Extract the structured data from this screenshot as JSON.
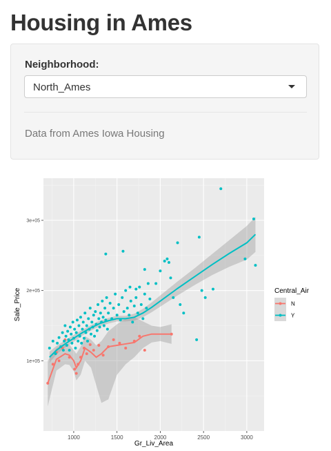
{
  "page": {
    "title": "Housing in Ames"
  },
  "sidebar": {
    "neighborhood_label": "Neighborhood:",
    "neighborhood_value": "North_Ames",
    "info_text": "Data from Ames Iowa Housing"
  },
  "colors": {
    "N": "#F8766D",
    "Y": "#00BFC4",
    "panel_bg": "#EBEBEB",
    "ribbon": "#999999"
  },
  "icons": {
    "dropdown": "chevron-down-icon"
  },
  "chart_data": {
    "type": "scatter",
    "title": "",
    "xlabel": "Gr_Liv_Area",
    "ylabel": "Sale_Price",
    "xlim": [
      650,
      3200
    ],
    "ylim": [
      0,
      360000
    ],
    "x_ticks": [
      1000,
      1500,
      2000,
      2500,
      3000
    ],
    "x_tick_labels": [
      "1000",
      "1500",
      "2000",
      "2500",
      "3000"
    ],
    "y_ticks": [
      100000,
      200000,
      300000
    ],
    "y_tick_labels": [
      "1e+05",
      "2e+05",
      "3e+05"
    ],
    "grid": true,
    "legend": {
      "title": "Central_Air",
      "position": "right",
      "entries": [
        "N",
        "Y"
      ]
    },
    "smoothing": "loess",
    "series": [
      {
        "name": "N",
        "color": "#F8766D",
        "points": [
          [
            700,
            68000
          ],
          [
            760,
            95000
          ],
          [
            800,
            112000
          ],
          [
            830,
            100000
          ],
          [
            870,
            118000
          ],
          [
            900,
            130000
          ],
          [
            950,
            105000
          ],
          [
            1010,
            88000
          ],
          [
            1030,
            82000
          ],
          [
            1050,
            95000
          ],
          [
            1080,
            105000
          ],
          [
            1120,
            118000
          ],
          [
            1150,
            110000
          ],
          [
            1190,
            123000
          ],
          [
            1230,
            115000
          ],
          [
            1290,
            122000
          ],
          [
            1340,
            108000
          ],
          [
            1400,
            120000
          ],
          [
            1460,
            130000
          ],
          [
            1530,
            125000
          ],
          [
            1600,
            118000
          ],
          [
            1700,
            128000
          ],
          [
            1760,
            135000
          ],
          [
            1820,
            115000
          ],
          [
            2130,
            138000
          ]
        ],
        "smooth": [
          [
            700,
            68000
          ],
          [
            800,
            102000
          ],
          [
            900,
            110000
          ],
          [
            950,
            108000
          ],
          [
            1000,
            100000
          ],
          [
            1030,
            90000
          ],
          [
            1080,
            100000
          ],
          [
            1130,
            118000
          ],
          [
            1200,
            112000
          ],
          [
            1260,
            105000
          ],
          [
            1320,
            110000
          ],
          [
            1400,
            120000
          ],
          [
            1500,
            122000
          ],
          [
            1600,
            124000
          ],
          [
            1700,
            126000
          ],
          [
            1800,
            135000
          ],
          [
            1900,
            138000
          ],
          [
            2000,
            138000
          ],
          [
            2130,
            138000
          ]
        ],
        "band_upper": [
          [
            700,
            100000
          ],
          [
            800,
            118000
          ],
          [
            900,
            125000
          ],
          [
            950,
            123000
          ],
          [
            1000,
            115000
          ],
          [
            1030,
            110000
          ],
          [
            1080,
            120000
          ],
          [
            1130,
            135000
          ],
          [
            1200,
            130000
          ],
          [
            1260,
            122000
          ],
          [
            1320,
            128000
          ],
          [
            1400,
            142000
          ],
          [
            1500,
            152000
          ],
          [
            1600,
            160000
          ],
          [
            1700,
            162000
          ],
          [
            1800,
            156000
          ],
          [
            1900,
            150000
          ],
          [
            2000,
            148000
          ],
          [
            2130,
            152000
          ]
        ],
        "band_lower": [
          [
            700,
            35000
          ],
          [
            800,
            86000
          ],
          [
            900,
            95000
          ],
          [
            950,
            94000
          ],
          [
            1000,
            85000
          ],
          [
            1030,
            72000
          ],
          [
            1080,
            80000
          ],
          [
            1130,
            100000
          ],
          [
            1200,
            90000
          ],
          [
            1260,
            65000
          ],
          [
            1320,
            40000
          ],
          [
            1400,
            45000
          ],
          [
            1500,
            80000
          ],
          [
            1600,
            95000
          ],
          [
            1700,
            105000
          ],
          [
            1800,
            118000
          ],
          [
            1900,
            126000
          ],
          [
            2000,
            128000
          ],
          [
            2130,
            124000
          ]
        ]
      },
      {
        "name": "Y",
        "color": "#00BFC4",
        "points": [
          [
            720,
            118000
          ],
          [
            760,
            128000
          ],
          [
            790,
            110000
          ],
          [
            810,
            125000
          ],
          [
            830,
            133000
          ],
          [
            850,
            120000
          ],
          [
            870,
            140000
          ],
          [
            880,
            115000
          ],
          [
            890,
            128000
          ],
          [
            900,
            150000
          ],
          [
            910,
            135000
          ],
          [
            920,
            122000
          ],
          [
            930,
            142000
          ],
          [
            940,
            130000
          ],
          [
            950,
            115000
          ],
          [
            960,
            148000
          ],
          [
            970,
            138000
          ],
          [
            980,
            125000
          ],
          [
            990,
            155000
          ],
          [
            1000,
            132000
          ],
          [
            1010,
            145000
          ],
          [
            1020,
            118000
          ],
          [
            1030,
            140000
          ],
          [
            1040,
            158000
          ],
          [
            1050,
            128000
          ],
          [
            1060,
            150000
          ],
          [
            1070,
            135000
          ],
          [
            1080,
            162000
          ],
          [
            1090,
            125000
          ],
          [
            1100,
            145000
          ],
          [
            1110,
            155000
          ],
          [
            1120,
            132000
          ],
          [
            1130,
            168000
          ],
          [
            1140,
            140000
          ],
          [
            1150,
            150000
          ],
          [
            1160,
            128000
          ],
          [
            1170,
            160000
          ],
          [
            1180,
            145000
          ],
          [
            1190,
            175000
          ],
          [
            1200,
            138000
          ],
          [
            1210,
            155000
          ],
          [
            1220,
            148000
          ],
          [
            1230,
            165000
          ],
          [
            1240,
            135000
          ],
          [
            1250,
            170000
          ],
          [
            1260,
            152000
          ],
          [
            1270,
            143000
          ],
          [
            1280,
            180000
          ],
          [
            1290,
            160000
          ],
          [
            1300,
            148000
          ],
          [
            1310,
            168000
          ],
          [
            1320,
            155000
          ],
          [
            1330,
            185000
          ],
          [
            1340,
            162000
          ],
          [
            1350,
            150000
          ],
          [
            1360,
            175000
          ],
          [
            1370,
            158000
          ],
          [
            1380,
            190000
          ],
          [
            1390,
            145000
          ],
          [
            1400,
            168000
          ],
          [
            1420,
            182000
          ],
          [
            1440,
            160000
          ],
          [
            1460,
            175000
          ],
          [
            1480,
            195000
          ],
          [
            1500,
            165000
          ],
          [
            1520,
            180000
          ],
          [
            1540,
            158000
          ],
          [
            1560,
            190000
          ],
          [
            1580,
            170000
          ],
          [
            1600,
            200000
          ],
          [
            1620,
            175000
          ],
          [
            1640,
            165000
          ],
          [
            1660,
            185000
          ],
          [
            1680,
            155000
          ],
          [
            1700,
            178000
          ],
          [
            1720,
            190000
          ],
          [
            1740,
            168000
          ],
          [
            1760,
            205000
          ],
          [
            1780,
            180000
          ],
          [
            1800,
            160000
          ],
          [
            1820,
            195000
          ],
          [
            1840,
            175000
          ],
          [
            1860,
            210000
          ],
          [
            1880,
            188000
          ],
          [
            1370,
            252000
          ],
          [
            1570,
            256000
          ],
          [
            1650,
            205000
          ],
          [
            1720,
            202000
          ],
          [
            1820,
            230000
          ],
          [
            1950,
            210000
          ],
          [
            2000,
            228000
          ],
          [
            2050,
            242000
          ],
          [
            2080,
            245000
          ],
          [
            2100,
            240000
          ],
          [
            2120,
            218000
          ],
          [
            2150,
            190000
          ],
          [
            2200,
            268000
          ],
          [
            2230,
            180000
          ],
          [
            2270,
            168000
          ],
          [
            2420,
            130000
          ],
          [
            2450,
            276000
          ],
          [
            2480,
            200000
          ],
          [
            2520,
            190000
          ],
          [
            2610,
            202000
          ],
          [
            2700,
            345000
          ],
          [
            2980,
            245000
          ],
          [
            3080,
            302000
          ],
          [
            3100,
            236000
          ]
        ],
        "smooth": [
          [
            720,
            105000
          ],
          [
            800,
            115000
          ],
          [
            900,
            124000
          ],
          [
            1000,
            132000
          ],
          [
            1100,
            140000
          ],
          [
            1200,
            147000
          ],
          [
            1300,
            153000
          ],
          [
            1400,
            157000
          ],
          [
            1500,
            160000
          ],
          [
            1600,
            160000
          ],
          [
            1700,
            162000
          ],
          [
            1800,
            168000
          ],
          [
            1900,
            176000
          ],
          [
            2000,
            185000
          ],
          [
            2200,
            203000
          ],
          [
            2400,
            220000
          ],
          [
            2600,
            237000
          ],
          [
            2800,
            253000
          ],
          [
            3000,
            268000
          ],
          [
            3100,
            280000
          ]
        ],
        "band_upper": [
          [
            720,
            113000
          ],
          [
            800,
            121000
          ],
          [
            900,
            129000
          ],
          [
            1000,
            137000
          ],
          [
            1100,
            144000
          ],
          [
            1200,
            151000
          ],
          [
            1300,
            157000
          ],
          [
            1400,
            161000
          ],
          [
            1500,
            164000
          ],
          [
            1600,
            164000
          ],
          [
            1700,
            167000
          ],
          [
            1800,
            174000
          ],
          [
            1900,
            183000
          ],
          [
            2000,
            193000
          ],
          [
            2200,
            213000
          ],
          [
            2400,
            232000
          ],
          [
            2600,
            252000
          ],
          [
            2800,
            272000
          ],
          [
            3000,
            292000
          ],
          [
            3100,
            305000
          ]
        ],
        "band_lower": [
          [
            720,
            97000
          ],
          [
            800,
            109000
          ],
          [
            900,
            119000
          ],
          [
            1000,
            127000
          ],
          [
            1100,
            136000
          ],
          [
            1200,
            143000
          ],
          [
            1300,
            149000
          ],
          [
            1400,
            153000
          ],
          [
            1500,
            156000
          ],
          [
            1600,
            156000
          ],
          [
            1700,
            157000
          ],
          [
            1800,
            162000
          ],
          [
            1900,
            169000
          ],
          [
            2000,
            177000
          ],
          [
            2200,
            193000
          ],
          [
            2400,
            208000
          ],
          [
            2600,
            222000
          ],
          [
            2800,
            234000
          ],
          [
            3000,
            244000
          ],
          [
            3100,
            255000
          ]
        ]
      }
    ]
  }
}
